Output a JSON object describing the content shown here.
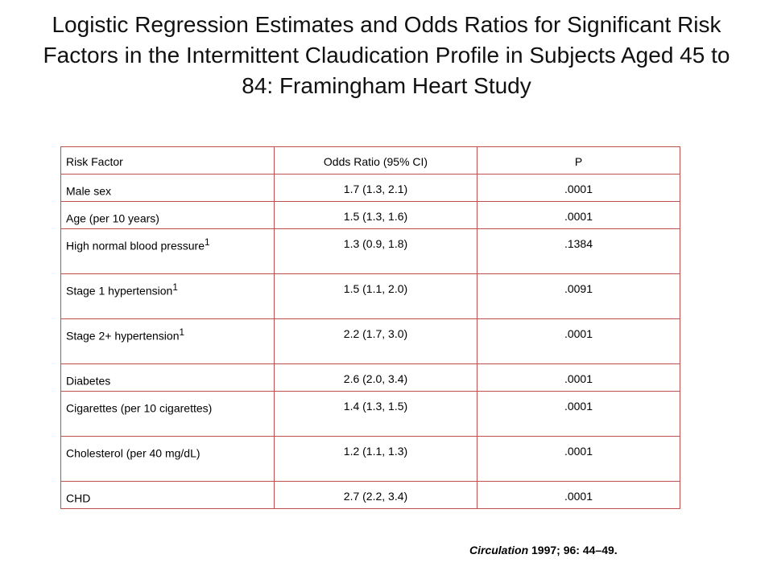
{
  "title": "Logistic Regression Estimates and Odds Ratios for Significant Risk Factors in the Intermittent Claudication Profile in Subjects Aged 45 to 84: Framingham Heart Study",
  "table": {
    "headers": [
      "Risk Factor",
      "Odds Ratio (95% CI)",
      "P"
    ],
    "rows": [
      {
        "factor": "Male sex",
        "sup": "",
        "odds": "1.7 (1.3, 2.1)",
        "p": ".0001"
      },
      {
        "factor": "Age (per 10 years)",
        "sup": "",
        "odds": "1.5 (1.3, 1.6)",
        "p": ".0001"
      },
      {
        "factor": "High normal blood pressure",
        "sup": "1",
        "odds": "1.3 (0.9, 1.8)",
        "p": ".1384"
      },
      {
        "factor": "Stage 1 hypertension",
        "sup": "1",
        "odds": "1.5 (1.1, 2.0)",
        "p": ".0091"
      },
      {
        "factor": "Stage 2+ hypertension",
        "sup": "1",
        "odds": "2.2 (1.7, 3.0)",
        "p": ".0001"
      },
      {
        "factor": "Diabetes",
        "sup": "",
        "odds": "2.6 (2.0, 3.4)",
        "p": ".0001"
      },
      {
        "factor": "Cigarettes (per 10 cigarettes)",
        "sup": "",
        "odds": "1.4 (1.3, 1.5)",
        "p": ".0001"
      },
      {
        "factor": "Cholesterol (per 40 mg/dL)",
        "sup": "",
        "odds": "1.2 (1.1, 1.3)",
        "p": ".0001"
      },
      {
        "factor": "CHD",
        "sup": "",
        "odds": "2.7 (2.2, 3.4)",
        "p": ".0001"
      }
    ]
  },
  "citation": {
    "journal": "Circulation",
    "details": " 1997; 96: 44–49."
  },
  "colors": {
    "grid_border": "#c0504d"
  }
}
